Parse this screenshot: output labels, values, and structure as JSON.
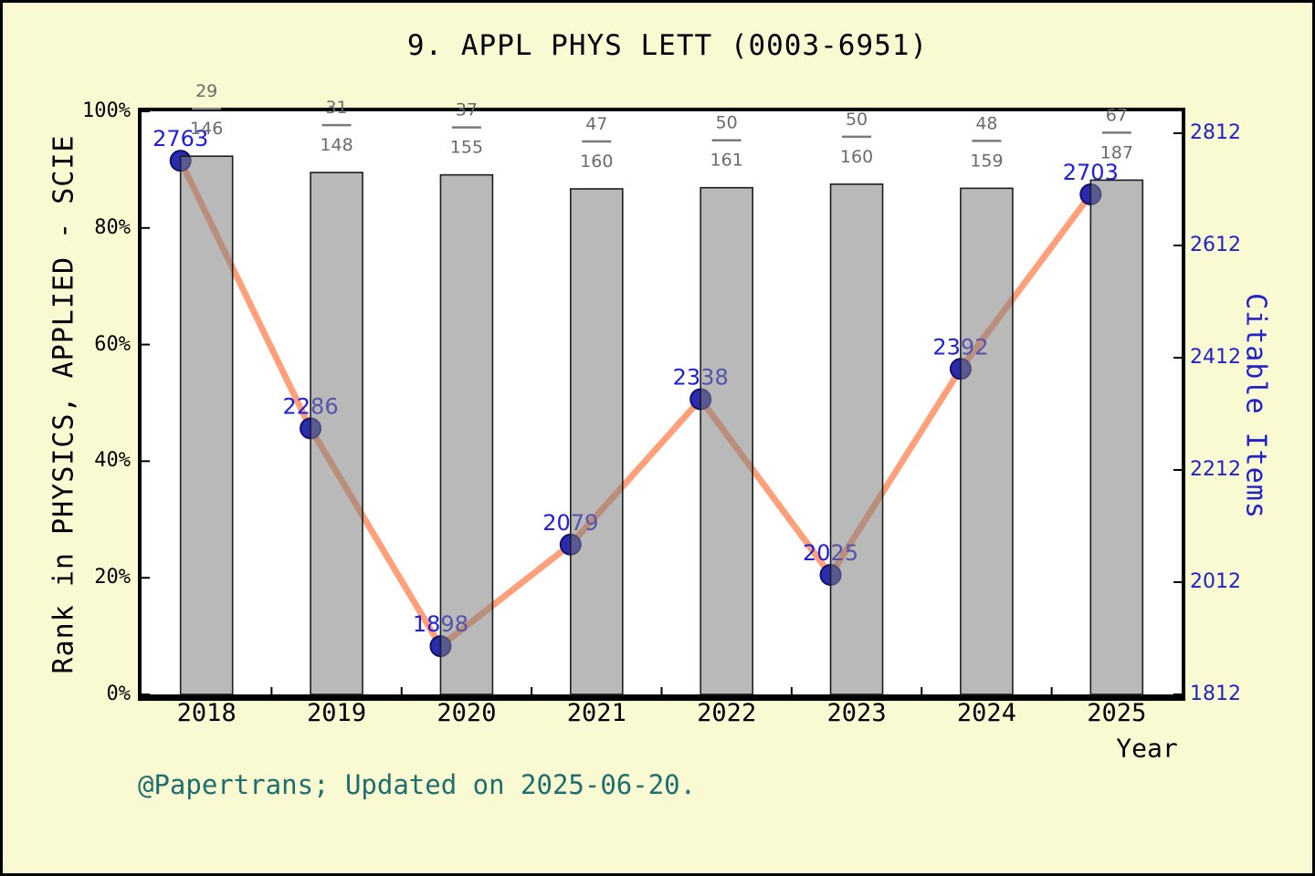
{
  "title": "9. APPL PHYS LETT (0003-6951)",
  "footer": "@Papertrans; Updated on 2025-06-20.",
  "colors": {
    "page_background": "#FAFAD2",
    "plot_background": "#FFFFFF",
    "bar_fill": "rgba(128,128,128,0.55)",
    "bar_edge": "#1c1c1c",
    "line": "#FFA07A",
    "dot_fill": "#2B2BAD",
    "dot_edge": "#10106E",
    "point_label": "#2020DC",
    "right_axis_blue": "#2222CC",
    "fraction_gray": "#6B6B6B",
    "fraction_dash": "#7A7A7A",
    "footer_teal": "#1E6E6E",
    "axis_black": "#000000"
  },
  "chart_data": {
    "type": "bar",
    "subtype": "dual-axis bar + line",
    "title": "9. APPL PHYS LETT (0003-6951)",
    "xlabel": "Year",
    "categories": [
      "2018",
      "2019",
      "2020",
      "2021",
      "2022",
      "2023",
      "2024",
      "2025"
    ],
    "left_axis": {
      "label": "Rank in PHYSICS, APPLIED - SCIE",
      "tick_labels": [
        "0%",
        "20%",
        "40%",
        "60%",
        "80%",
        "100%"
      ],
      "tick_values": [
        0,
        20,
        40,
        60,
        80,
        100
      ],
      "range": [
        0,
        100
      ],
      "grid": false
    },
    "right_axis": {
      "label": "Citable Items",
      "tick_labels": [
        "1812",
        "2012",
        "2212",
        "2412",
        "2612",
        "2812"
      ],
      "tick_values": [
        1812,
        2012,
        2212,
        2412,
        2612,
        2812
      ],
      "range": [
        1812,
        2812
      ],
      "grid": false
    },
    "series": [
      {
        "name": "rank-percentile-bars",
        "type": "bar",
        "axis": "left",
        "bar_heights_pct": [
          92.3,
          89.5,
          89.1,
          86.7,
          86.9,
          87.5,
          86.8,
          88.2
        ],
        "rank_fractions": [
          {
            "num": "29",
            "den": "146"
          },
          {
            "num": "31",
            "den": "148"
          },
          {
            "num": "37",
            "den": "155"
          },
          {
            "num": "47",
            "den": "160"
          },
          {
            "num": "50",
            "den": "161"
          },
          {
            "num": "50",
            "den": "160"
          },
          {
            "num": "48",
            "den": "159"
          },
          {
            "num": "67",
            "den": "187"
          }
        ]
      },
      {
        "name": "citable-items-line",
        "type": "line",
        "axis": "right",
        "values": [
          2763,
          2286,
          1898,
          2079,
          2338,
          2025,
          2392,
          2703
        ],
        "point_labels": [
          "2763",
          "2286",
          "1898",
          "2079",
          "2338",
          "2025",
          "2392",
          "2703"
        ]
      }
    ]
  }
}
